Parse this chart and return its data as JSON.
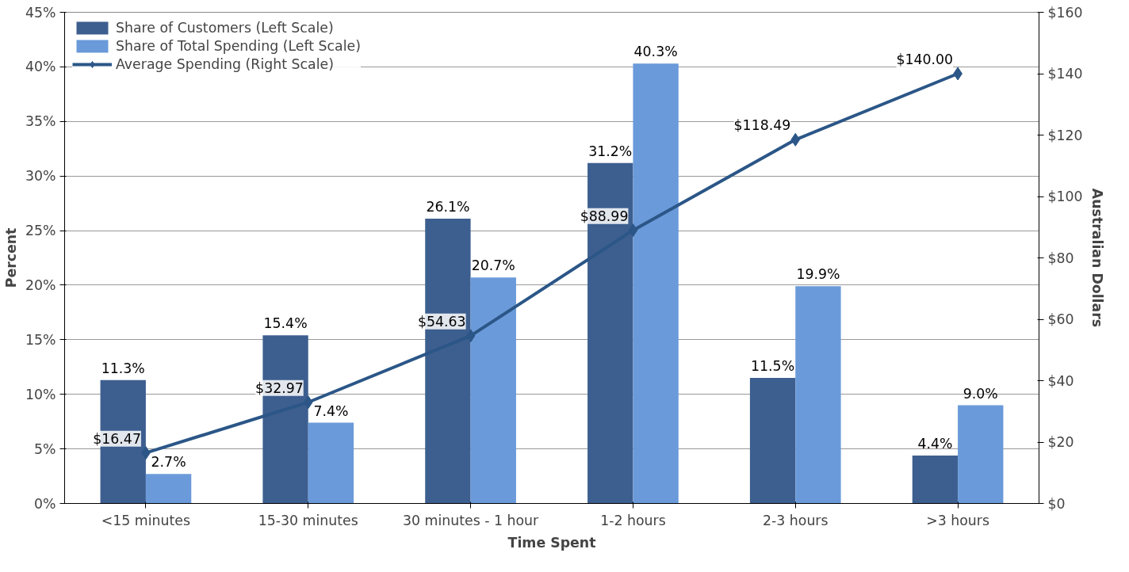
{
  "chart_data": {
    "type": "bar",
    "xlabel": "Time Spent",
    "ylabel": "Percent",
    "y2label": "Australian Dollars",
    "categories": [
      "<15 minutes",
      "15-30 minutes",
      "30 minutes - 1 hour",
      "1-2 hours",
      "2-3 hours",
      ">3 hours"
    ],
    "series": [
      {
        "name": "Share of Customers (Left Scale)",
        "color": "#3d5f8f",
        "values": [
          11.3,
          15.4,
          26.1,
          31.2,
          11.5,
          4.4
        ],
        "value_labels": [
          "11.3%",
          "15.4%",
          "26.1%",
          "31.2%",
          "11.5%",
          "4.4%"
        ]
      },
      {
        "name": "Share of Total Spending (Left Scale)",
        "color": "#6a9ad9",
        "values": [
          2.7,
          7.4,
          20.7,
          40.3,
          19.9,
          9.0
        ],
        "value_labels": [
          "2.7%",
          "7.4%",
          "20.7%",
          "40.3%",
          "19.9%",
          "9.0%"
        ]
      },
      {
        "name": "Average Spending (Right Scale)",
        "type": "line",
        "axis": "y2",
        "color": "#2b5687",
        "marker": "diamond",
        "values": [
          16.47,
          32.97,
          54.63,
          88.99,
          118.49,
          140.0
        ],
        "value_labels": [
          "$16.47",
          "$32.97",
          "$54.63",
          "$88.99",
          "$118.49",
          "$140.00"
        ]
      }
    ],
    "ylim": [
      0,
      45
    ],
    "yticks": [
      {
        "value": 0,
        "label": "0%"
      },
      {
        "value": 5,
        "label": "5%"
      },
      {
        "value": 10,
        "label": "10%"
      },
      {
        "value": 15,
        "label": "15%"
      },
      {
        "value": 20,
        "label": "20%"
      },
      {
        "value": 25,
        "label": "25%"
      },
      {
        "value": 30,
        "label": "30%"
      },
      {
        "value": 35,
        "label": "35%"
      },
      {
        "value": 40,
        "label": "40%"
      },
      {
        "value": 45,
        "label": "45%"
      }
    ],
    "y2lim": [
      0,
      160
    ],
    "y2ticks": [
      {
        "value": 0,
        "label": "$0"
      },
      {
        "value": 20,
        "label": "$20"
      },
      {
        "value": 40,
        "label": "$40"
      },
      {
        "value": 60,
        "label": "$60"
      },
      {
        "value": 80,
        "label": "$80"
      },
      {
        "value": 100,
        "label": "$100"
      },
      {
        "value": 120,
        "label": "$120"
      },
      {
        "value": 140,
        "label": "$140"
      },
      {
        "value": 160,
        "label": "$160"
      }
    ],
    "grid": "y",
    "legend": "top left"
  }
}
